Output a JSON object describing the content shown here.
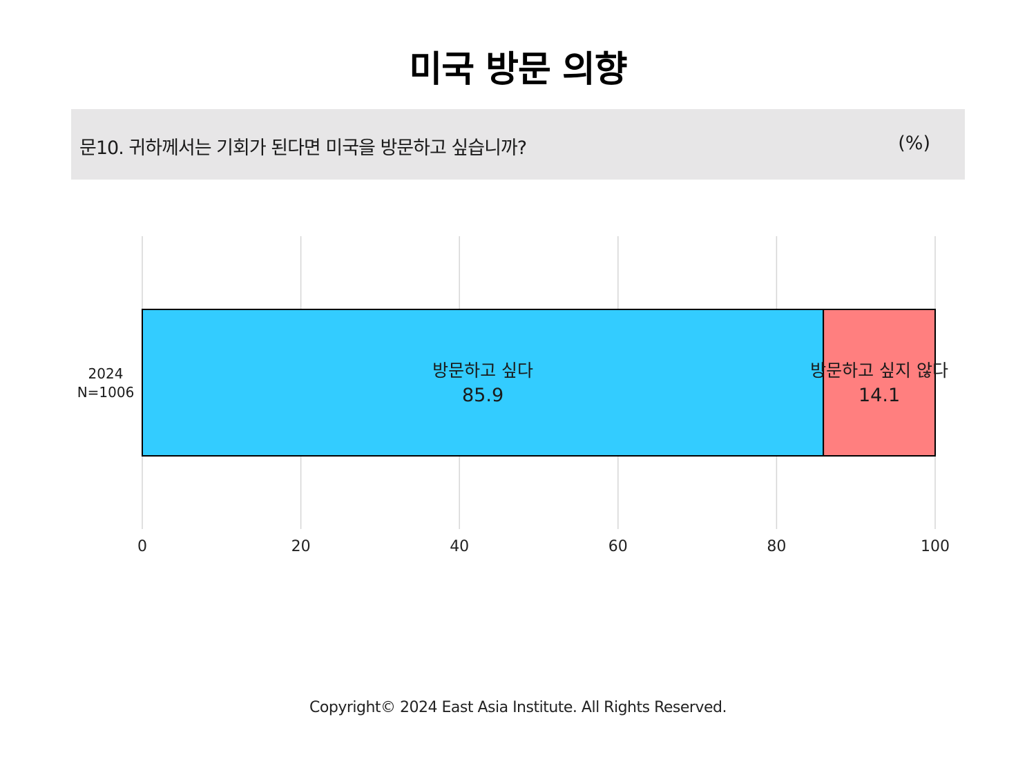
{
  "header": {
    "title": "미국 방문 의향",
    "question": "문10. 귀하께서는 기회가 된다면 미국을 방문하고 싶습니까?",
    "unit": "(%)"
  },
  "chart_data": {
    "type": "bar",
    "orientation": "horizontal",
    "stacked": true,
    "categories": [
      "2024\nN=1006"
    ],
    "category_lines": [
      [
        "2024",
        "N=1006"
      ]
    ],
    "series": [
      {
        "name": "방문하고 싶다",
        "values": [
          85.9
        ],
        "color": "#33ccff"
      },
      {
        "name": "방문하고 싶지 않다",
        "values": [
          14.1
        ],
        "color": "#ff7f7f"
      }
    ],
    "xlim": [
      0,
      100
    ],
    "xticks": [
      0,
      20,
      40,
      60,
      80,
      100
    ],
    "grid": true,
    "bar_border_color": "#000000",
    "grid_color": "#d6d6d6"
  },
  "footer": {
    "copyright": "Copyright© 2024 East Asia Institute. All Rights Reserved."
  }
}
